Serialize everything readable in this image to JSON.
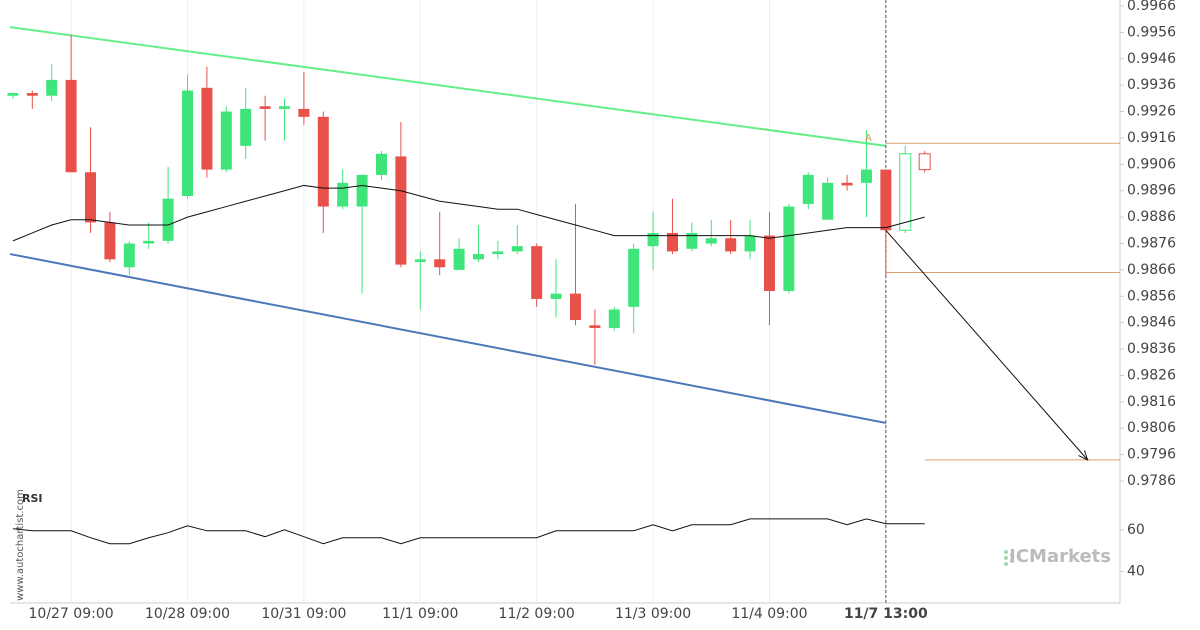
{
  "chart_data": {
    "type": "candlestick",
    "watermark": "www.autochartist.com",
    "brand": "ICMarkets",
    "xlim": [
      -0.15,
      57.07
    ],
    "xticks": [
      {
        "value": 3,
        "label": "10/27 09:00"
      },
      {
        "value": 9,
        "label": "10/28 09:00"
      },
      {
        "value": 15,
        "label": "10/31 09:00"
      },
      {
        "value": 21,
        "label": "11/1 09:00"
      },
      {
        "value": 27,
        "label": "11/2 09:00"
      },
      {
        "value": 33,
        "label": "11/3 09:00"
      },
      {
        "value": 39,
        "label": "11/4 09:00"
      },
      {
        "value": 45,
        "label": "11/7 13:00"
      }
    ],
    "ylim": [
      0.9786,
      0.9966
    ],
    "yticks": [
      0.9966,
      0.9956,
      0.9946,
      0.9936,
      0.9926,
      0.9916,
      0.9906,
      0.9896,
      0.9886,
      0.9876,
      0.9866,
      0.9856,
      0.9846,
      0.9836,
      0.9826,
      0.9816,
      0.9806,
      0.9796,
      0.9786
    ],
    "up_color": "#3fe57a",
    "down_color": "#e8504a",
    "hollow_from": 46,
    "open": [
      0.9932,
      0.9933,
      0.9932,
      0.9938,
      0.9903,
      0.9884,
      0.9867,
      0.9876,
      0.9877,
      0.9894,
      0.9935,
      0.9904,
      0.9913,
      0.9928,
      0.9927,
      0.9927,
      0.9924,
      0.989,
      0.989,
      0.9902,
      0.9909,
      0.9869,
      0.987,
      0.9866,
      0.987,
      0.9872,
      0.9873,
      0.9875,
      0.9855,
      0.9857,
      0.9845,
      0.9844,
      0.9852,
      0.9875,
      0.988,
      0.9874,
      0.9876,
      0.9878,
      0.9873,
      0.9879,
      0.9858,
      0.9891,
      0.9885,
      0.9899,
      0.9899,
      0.9904,
      0.9881,
      0.991
    ],
    "high": [
      0.9933,
      0.9934,
      0.9944,
      0.9955,
      0.992,
      0.9888,
      0.9877,
      0.9884,
      0.9905,
      0.994,
      0.9943,
      0.9928,
      0.9935,
      0.9932,
      0.9931,
      0.9941,
      0.9926,
      0.9904,
      0.9902,
      0.9911,
      0.9922,
      0.9873,
      0.9888,
      0.9878,
      0.9883,
      0.9877,
      0.9883,
      0.9876,
      0.987,
      0.9891,
      0.9851,
      0.9852,
      0.9876,
      0.9888,
      0.9893,
      0.9884,
      0.9885,
      0.9885,
      0.9885,
      0.9888,
      0.9891,
      0.9903,
      0.9901,
      0.9902,
      0.9919,
      0.9904,
      0.9913,
      0.9911
    ],
    "low": [
      0.9931,
      0.9927,
      0.993,
      0.9903,
      0.988,
      0.9869,
      0.9864,
      0.9874,
      0.9876,
      0.9893,
      0.9901,
      0.9903,
      0.9908,
      0.9915,
      0.9915,
      0.9921,
      0.988,
      0.9889,
      0.9857,
      0.99,
      0.9867,
      0.9851,
      0.9864,
      0.9866,
      0.9869,
      0.987,
      0.9872,
      0.9852,
      0.9848,
      0.9845,
      0.983,
      0.9843,
      0.9842,
      0.9866,
      0.9872,
      0.9873,
      0.9875,
      0.9872,
      0.987,
      0.9845,
      0.9857,
      0.9889,
      0.9885,
      0.9896,
      0.9886,
      0.9864,
      0.988,
      0.9903
    ],
    "close": [
      0.9933,
      0.9932,
      0.9938,
      0.9903,
      0.9884,
      0.987,
      0.9876,
      0.9877,
      0.9893,
      0.9934,
      0.9904,
      0.9926,
      0.9927,
      0.9927,
      0.9928,
      0.9924,
      0.989,
      0.9899,
      0.9902,
      0.991,
      0.9868,
      0.987,
      0.9867,
      0.9874,
      0.9872,
      0.9873,
      0.9875,
      0.9855,
      0.9857,
      0.9847,
      0.9844,
      0.9851,
      0.9874,
      0.988,
      0.9873,
      0.988,
      0.9878,
      0.9873,
      0.9879,
      0.9858,
      0.989,
      0.9902,
      0.9899,
      0.9898,
      0.9904,
      0.9881,
      0.991,
      0.9904
    ],
    "moving_average": {
      "color": "#111111",
      "values": [
        0.9877,
        0.988,
        0.9883,
        0.9885,
        0.9885,
        0.9884,
        0.9883,
        0.9883,
        0.9883,
        0.9886,
        0.9888,
        0.989,
        0.9892,
        0.9894,
        0.9896,
        0.9898,
        0.9897,
        0.9897,
        0.9898,
        0.9897,
        0.9896,
        0.9894,
        0.9892,
        0.9891,
        0.989,
        0.9889,
        0.9889,
        0.9887,
        0.9885,
        0.9883,
        0.9881,
        0.9879,
        0.9879,
        0.9879,
        0.9879,
        0.9879,
        0.9879,
        0.9879,
        0.9879,
        0.9878,
        0.9879,
        0.988,
        0.9881,
        0.9882,
        0.9882,
        0.9882,
        0.9884,
        0.9886
      ]
    },
    "trendlines": [
      {
        "color": "#66ee88",
        "x": [
          -0.15,
          45
        ],
        "values": [
          0.9958,
          0.9913
        ]
      },
      {
        "color": "#4a78b8",
        "x": [
          -0.15,
          45
        ],
        "values": [
          0.9872,
          0.9808
        ]
      }
    ],
    "levels": [
      {
        "color": "#d9a070",
        "value": 0.9914,
        "x": [
          45,
          57.07
        ]
      },
      {
        "color": "#d9a070",
        "value": 0.9865,
        "x": [
          45,
          57.07
        ]
      },
      {
        "color": "#d9a070",
        "value": 0.9794,
        "x": [
          47,
          57.07
        ]
      }
    ],
    "forecast": {
      "color": "#111111",
      "x": [
        45,
        55.4
      ],
      "values": [
        0.9881,
        0.9794
      ]
    },
    "marker": {
      "label": "A",
      "color": "#e8904a",
      "x": 44.1,
      "value": 0.9916
    },
    "cursor_x": 45,
    "rsi": {
      "label": "RSI",
      "color": "#111111",
      "ylim": [
        25,
        79
      ],
      "yticks": [
        40,
        60
      ],
      "values": [
        60.5,
        59.5,
        59.5,
        59.5,
        56.2,
        53.3,
        53.3,
        56.2,
        58.6,
        61.9,
        59.5,
        59.5,
        59.5,
        56.7,
        60,
        56.7,
        53.3,
        56.2,
        56.2,
        56.2,
        53.3,
        56.2,
        56.2,
        56.2,
        56.2,
        56.2,
        56.2,
        56.2,
        59.5,
        59.5,
        59.5,
        59.5,
        59.5,
        62.4,
        59.5,
        62.4,
        62.4,
        62.4,
        65.2,
        65.2,
        65.2,
        65.2,
        65.2,
        62.4,
        65.2,
        62.9,
        62.9,
        62.9
      ]
    }
  }
}
